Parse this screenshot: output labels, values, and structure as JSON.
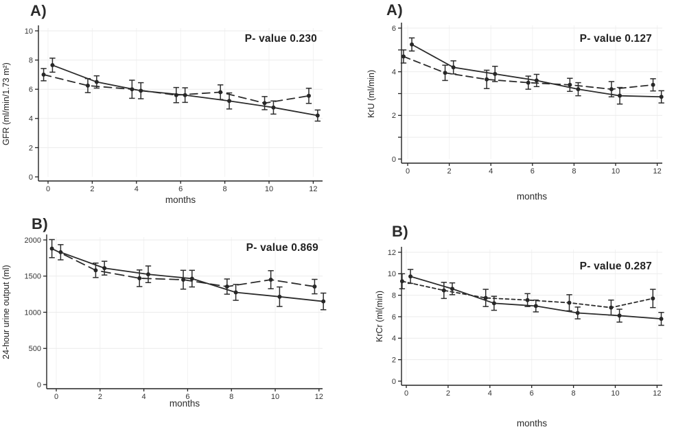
{
  "colors": {
    "background": "#ffffff",
    "ink": "#2b2b2b",
    "grid": "#ebebeb",
    "grid_vertical": "#f2f2f2",
    "axis": "#222222"
  },
  "chart_data": [
    {
      "type": "line",
      "label": "A)",
      "p_value": "P- value 0.230",
      "ylabel": "GFR (ml/min/1.73 m²)",
      "xlabel": "months",
      "ylim": [
        0,
        10
      ],
      "yticks": [
        {
          "v": 0,
          "label": "0"
        },
        {
          "v": 2,
          "label": "2"
        },
        {
          "v": 4,
          "label": "4"
        },
        {
          "v": 6,
          "label": "6"
        },
        {
          "v": 8,
          "label": "8"
        },
        {
          "v": 10,
          "label": "10"
        }
      ],
      "xticks": [
        {
          "v": 0,
          "label": "0"
        },
        {
          "v": 2,
          "label": "2"
        },
        {
          "v": 4,
          "label": "4"
        },
        {
          "v": 6,
          "label": "6"
        },
        {
          "v": 8,
          "label": "8"
        },
        {
          "v": 10,
          "label": "10"
        },
        {
          "v": 12,
          "label": "12"
        }
      ],
      "series": [
        {
          "name": "dashed-series",
          "style": "dashed",
          "dash": "11,7",
          "x": [
            -0.2,
            1.8,
            3.8,
            5.8,
            7.8,
            9.8,
            11.8
          ],
          "y": [
            7.0,
            6.25,
            6.0,
            5.6,
            5.8,
            5.05,
            5.55
          ],
          "err": [
            0.42,
            0.48,
            0.62,
            0.52,
            0.5,
            0.45,
            0.52
          ]
        },
        {
          "name": "solid-series",
          "style": "solid",
          "dash": "",
          "x": [
            0.2,
            2.2,
            4.2,
            6.2,
            8.2,
            10.2,
            12.2
          ],
          "y": [
            7.65,
            6.5,
            5.9,
            5.6,
            5.2,
            4.75,
            4.2
          ],
          "err": [
            0.48,
            0.42,
            0.55,
            0.5,
            0.55,
            0.45,
            0.38
          ]
        }
      ]
    },
    {
      "type": "line",
      "label": "A)",
      "p_value": "P- value 0.127",
      "ylabel": "KrU (ml/min)",
      "xlabel": "months",
      "ylim": [
        0,
        6
      ],
      "yticks": [
        {
          "v": 0,
          "label": "0"
        },
        {
          "v": 1,
          "label": ""
        },
        {
          "v": 2,
          "label": "2"
        },
        {
          "v": 3,
          "label": ""
        },
        {
          "v": 4,
          "label": "4"
        },
        {
          "v": 5,
          "label": ""
        },
        {
          "v": 6,
          "label": "6"
        }
      ],
      "xticks": [
        {
          "v": 0,
          "label": "0"
        },
        {
          "v": 2,
          "label": "2"
        },
        {
          "v": 4,
          "label": "4"
        },
        {
          "v": 6,
          "label": "6"
        },
        {
          "v": 8,
          "label": "8"
        },
        {
          "v": 10,
          "label": "10"
        },
        {
          "v": 12,
          "label": "12"
        }
      ],
      "series": [
        {
          "name": "dashed-series",
          "style": "dashed",
          "dash": "10,6",
          "x": [
            -0.2,
            1.8,
            3.8,
            5.8,
            7.8,
            9.8,
            11.8
          ],
          "y": [
            4.7,
            3.95,
            3.65,
            3.5,
            3.4,
            3.2,
            3.4
          ],
          "err": [
            0.3,
            0.35,
            0.42,
            0.3,
            0.3,
            0.35,
            0.28
          ]
        },
        {
          "name": "solid-series",
          "style": "solid",
          "dash": "",
          "x": [
            0.2,
            2.2,
            4.2,
            6.2,
            8.2,
            10.2,
            12.2
          ],
          "y": [
            5.25,
            4.2,
            3.9,
            3.6,
            3.2,
            2.9,
            2.85
          ],
          "err": [
            0.3,
            0.3,
            0.35,
            0.28,
            0.3,
            0.38,
            0.28
          ]
        }
      ]
    },
    {
      "type": "line",
      "label": "B)",
      "p_value": "P- value 0.869",
      "ylabel": "24-hour urine output (ml)",
      "xlabel": "months",
      "ylim": [
        0,
        2000
      ],
      "yticks": [
        {
          "v": 0,
          "label": "0"
        },
        {
          "v": 500,
          "label": "500"
        },
        {
          "v": 1000,
          "label": "1000"
        },
        {
          "v": 1500,
          "label": "1500"
        },
        {
          "v": 2000,
          "label": "2000"
        }
      ],
      "xticks": [
        {
          "v": 0,
          "label": "0"
        },
        {
          "v": 2,
          "label": "2"
        },
        {
          "v": 4,
          "label": "4"
        },
        {
          "v": 6,
          "label": "6"
        },
        {
          "v": 8,
          "label": "8"
        },
        {
          "v": 10,
          "label": "10"
        },
        {
          "v": 12,
          "label": "12"
        }
      ],
      "series": [
        {
          "name": "dashed-series",
          "style": "dashed",
          "dash": "13,7",
          "x": [
            -0.2,
            1.8,
            3.8,
            5.8,
            7.8,
            9.8,
            11.8
          ],
          "y": [
            1880,
            1580,
            1470,
            1450,
            1355,
            1450,
            1355
          ],
          "err": [
            125,
            100,
            115,
            130,
            105,
            125,
            100
          ]
        },
        {
          "name": "solid-series",
          "style": "solid",
          "dash": "",
          "x": [
            0.2,
            2.2,
            4.2,
            6.2,
            8.2,
            10.2,
            12.2
          ],
          "y": [
            1830,
            1610,
            1525,
            1465,
            1275,
            1215,
            1150
          ],
          "err": [
            105,
            95,
            115,
            115,
            110,
            135,
            115
          ]
        }
      ]
    },
    {
      "type": "line",
      "label": "B)",
      "p_value": "P- value 0.287",
      "ylabel": "KrCr (ml(min)",
      "xlabel": "months",
      "ylim": [
        0,
        12
      ],
      "yticks": [
        {
          "v": 0,
          "label": "0"
        },
        {
          "v": 2,
          "label": "2"
        },
        {
          "v": 4,
          "label": "4"
        },
        {
          "v": 6,
          "label": "6"
        },
        {
          "v": 8,
          "label": "8"
        },
        {
          "v": 10,
          "label": "10"
        },
        {
          "v": 12,
          "label": "12"
        }
      ],
      "xticks": [
        {
          "v": 0,
          "label": "0"
        },
        {
          "v": 2,
          "label": "2"
        },
        {
          "v": 4,
          "label": "4"
        },
        {
          "v": 6,
          "label": "6"
        },
        {
          "v": 8,
          "label": "8"
        },
        {
          "v": 10,
          "label": "10"
        },
        {
          "v": 12,
          "label": "12"
        }
      ],
      "series": [
        {
          "name": "dashed-series",
          "style": "dashed",
          "dash": "5,4",
          "x": [
            -0.2,
            1.8,
            3.8,
            5.8,
            7.8,
            9.8,
            11.8
          ],
          "y": [
            9.3,
            8.45,
            7.75,
            7.55,
            7.3,
            6.85,
            7.7
          ],
          "err": [
            0.7,
            0.75,
            0.8,
            0.6,
            0.75,
            0.7,
            0.85
          ]
        },
        {
          "name": "solid-series",
          "style": "solid",
          "dash": "",
          "x": [
            0.2,
            2.2,
            4.2,
            6.2,
            8.2,
            10.2,
            12.2
          ],
          "y": [
            9.75,
            8.6,
            7.25,
            7.0,
            6.35,
            6.1,
            5.8
          ],
          "err": [
            0.65,
            0.55,
            0.65,
            0.55,
            0.55,
            0.6,
            0.6
          ]
        }
      ]
    }
  ]
}
